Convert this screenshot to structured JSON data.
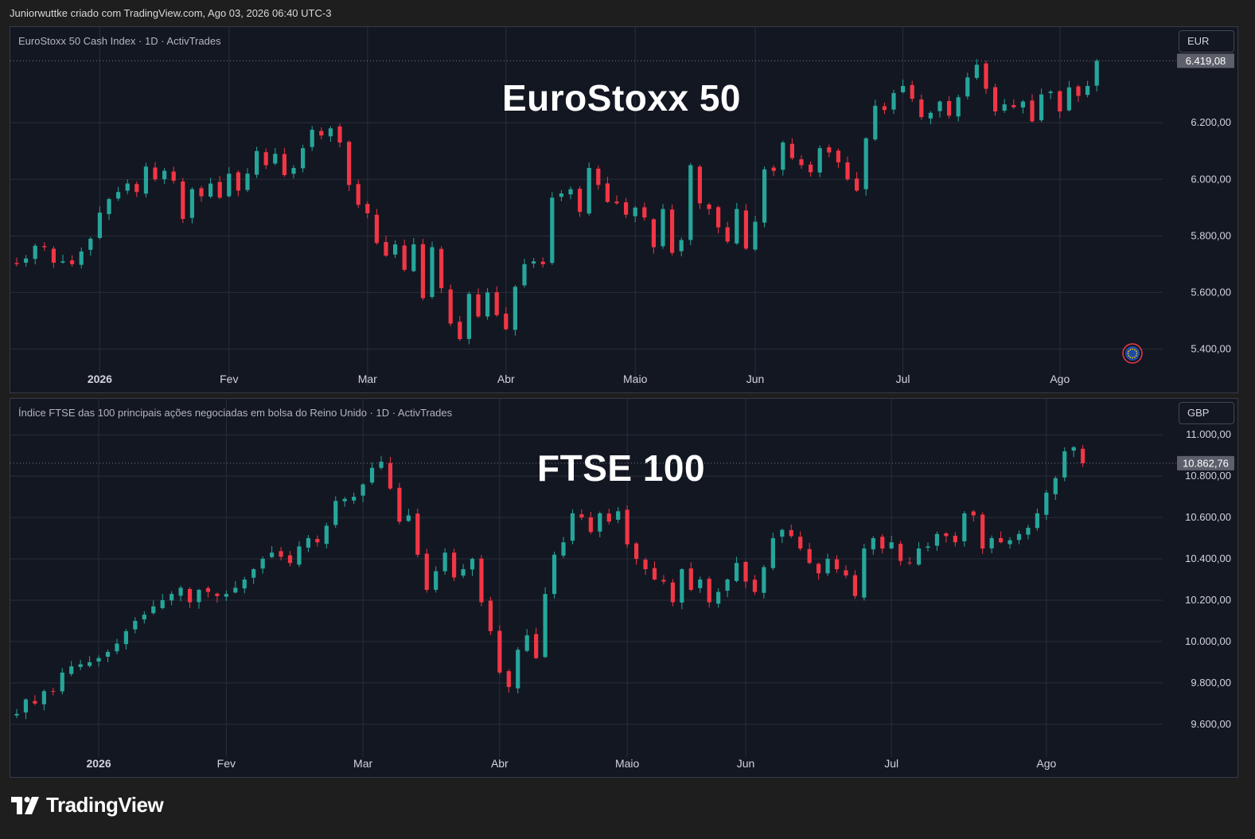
{
  "header": {
    "text": "Juniorwuttke criado com TradingView.com, Ago 03, 2026 06:40 UTC-3"
  },
  "brand": {
    "name": "TradingView",
    "logo_icon": "tradingview-logo-icon"
  },
  "colors": {
    "up": "#26a69a",
    "down": "#f23645",
    "background": "#131722",
    "grid": "#2a2e39",
    "axis_text": "#d1d4dc",
    "price_tag": "#5d606b"
  },
  "x_axis_labels": [
    "2026",
    "Fev",
    "Mar",
    "Abr",
    "Maio",
    "Jun",
    "Jul",
    "Ago"
  ],
  "chart_data": [
    {
      "type": "candlestick",
      "title": "EuroStoxx 50",
      "symbol_label": "EuroStoxx 50 Cash Index · 1D · ActivTrades",
      "currency": "EUR",
      "last_price": 6419.08,
      "last_price_label": "6.419,08",
      "y_ticks": [
        6200,
        6000,
        5800,
        5600,
        5400
      ],
      "y_tick_labels": [
        "6.200,00",
        "6.000,00",
        "5.800,00",
        "5.600,00",
        "5.400,00"
      ],
      "ylim": [
        5300,
        6420
      ],
      "grid": true,
      "close_path": [
        5700,
        5720,
        5765,
        5760,
        5705,
        5710,
        5700,
        5745,
        5790,
        5882,
        5930,
        5955,
        5985,
        5955,
        6045,
        6000,
        6030,
        5995,
        5860,
        5965,
        5940,
        5985,
        5935,
        6020,
        5960,
        6020,
        6100,
        6050,
        6090,
        6015,
        6040,
        6110,
        6175,
        6155,
        6180,
        6130,
        5980,
        5910,
        5880,
        5775,
        5730,
        5770,
        5680,
        5770,
        5580,
        5760,
        5615,
        5490,
        5435,
        5595,
        5515,
        5600,
        5520,
        5470,
        5620,
        5700,
        5710,
        5700,
        5935,
        5950,
        5965,
        5885,
        6040,
        5980,
        5920,
        5915,
        5875,
        5900,
        5865,
        5760,
        5895,
        5740,
        5785,
        6050,
        5915,
        5895,
        5830,
        5780,
        5895,
        5755,
        5850,
        6035,
        6030,
        6130,
        6075,
        6050,
        6025,
        6110,
        6095,
        6060,
        6000,
        5960,
        6145,
        6260,
        6245,
        6305,
        6330,
        6285,
        6220,
        6235,
        6275,
        6225,
        6290,
        6360,
        6405,
        6320,
        6240,
        6265,
        6255,
        6275,
        6205,
        6300,
        6310,
        6240,
        6325,
        6295,
        6330,
        6419
      ],
      "x_labels": [
        {
          "label": "2026",
          "index": 9
        },
        {
          "label": "Fev",
          "index": 23
        },
        {
          "label": "Mar",
          "index": 38
        },
        {
          "label": "Abr",
          "index": 53
        },
        {
          "label": "Maio",
          "index": 67
        },
        {
          "label": "Jun",
          "index": 80
        },
        {
          "label": "Jul",
          "index": 96
        },
        {
          "label": "Ago",
          "index": 113
        }
      ],
      "marker_icon": "eu-flag-icon"
    },
    {
      "type": "candlestick",
      "title": "FTSE 100",
      "symbol_label": "Índice FTSE das 100 principais ações negociadas em bolsa do Reino Unido · 1D · ActivTrades",
      "currency": "GBP",
      "last_price": 10862.76,
      "last_price_label": "10.862,76",
      "y_ticks": [
        11000,
        10800,
        10600,
        10400,
        10200,
        10000,
        9800,
        9600
      ],
      "y_tick_labels": [
        "11.000,00",
        "10.800,00",
        "10.600,00",
        "10.400,00",
        "10.200,00",
        "10.000,00",
        "9.800,00",
        "9.600,00"
      ],
      "ylim": [
        9480,
        11020
      ],
      "grid": true,
      "close_path": [
        9650,
        9720,
        9700,
        9760,
        9760,
        9850,
        9880,
        9890,
        9900,
        9920,
        9950,
        9990,
        10050,
        10100,
        10130,
        10170,
        10200,
        10230,
        10260,
        10190,
        10250,
        10240,
        10220,
        10230,
        10260,
        10300,
        10350,
        10400,
        10430,
        10410,
        10380,
        10460,
        10500,
        10480,
        10560,
        10680,
        10690,
        10700,
        10760,
        10840,
        10870,
        10740,
        10580,
        10610,
        10420,
        10250,
        10340,
        10430,
        10310,
        10350,
        10400,
        10190,
        10050,
        9850,
        9780,
        9960,
        10030,
        9920,
        10230,
        10420,
        10480,
        10620,
        10600,
        10530,
        10620,
        10580,
        10630,
        10470,
        10400,
        10350,
        10300,
        10290,
        10190,
        10350,
        10250,
        10300,
        10190,
        10240,
        10300,
        10380,
        10290,
        10240,
        10360,
        10500,
        10540,
        10510,
        10450,
        10380,
        10330,
        10400,
        10350,
        10320,
        10220,
        10450,
        10500,
        10450,
        10480,
        10390,
        10380,
        10450,
        10460,
        10520,
        10510,
        10480,
        10620,
        10610,
        10450,
        10500,
        10480,
        10490,
        10520,
        10550,
        10620,
        10720,
        10790,
        10920,
        10940,
        10863
      ],
      "x_labels": [
        {
          "label": "2026",
          "index": 9
        },
        {
          "label": "Fev",
          "index": 23
        },
        {
          "label": "Mar",
          "index": 38
        },
        {
          "label": "Abr",
          "index": 53
        },
        {
          "label": "Maio",
          "index": 67
        },
        {
          "label": "Jun",
          "index": 80
        },
        {
          "label": "Jul",
          "index": 96
        },
        {
          "label": "Ago",
          "index": 113
        }
      ]
    }
  ]
}
